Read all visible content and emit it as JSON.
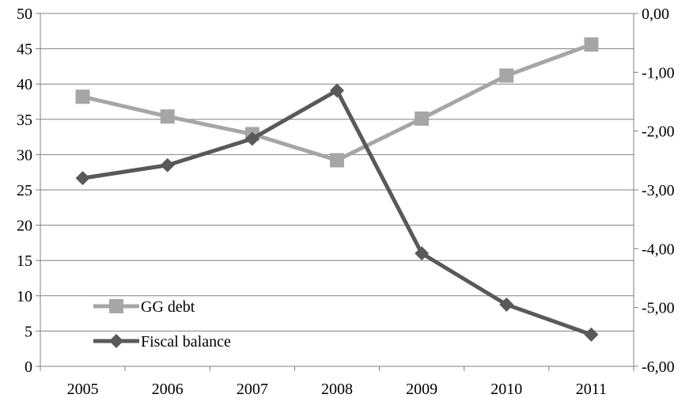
{
  "chart_data": {
    "type": "line",
    "title": "",
    "xlabel": "",
    "ylabel": "",
    "y2label": "",
    "categories": [
      "2005",
      "2006",
      "2007",
      "2008",
      "2009",
      "2010",
      "2011"
    ],
    "ylim": [
      0,
      50
    ],
    "y_ticks": [
      "0",
      "5",
      "10",
      "15",
      "20",
      "25",
      "30",
      "35",
      "40",
      "45",
      "50"
    ],
    "y2lim": [
      -6,
      0
    ],
    "y2_ticks": [
      "-6,00",
      "-5,00",
      "-4,00",
      "-3,00",
      "-2,00",
      "-1,00",
      "0,00"
    ],
    "grid": true,
    "legend_position": "bottom-left",
    "series": [
      {
        "name": "GG debt",
        "axis": "left",
        "marker": "square",
        "color": "#a6a6a6",
        "values": [
          38.2,
          35.4,
          32.9,
          29.2,
          35.1,
          41.2,
          45.6
        ]
      },
      {
        "name": "Fiscal balance",
        "axis": "right",
        "marker": "diamond",
        "color": "#595959",
        "values": [
          -2.8,
          -2.58,
          -2.13,
          -1.31,
          -4.08,
          -4.95,
          -5.46
        ]
      }
    ]
  }
}
